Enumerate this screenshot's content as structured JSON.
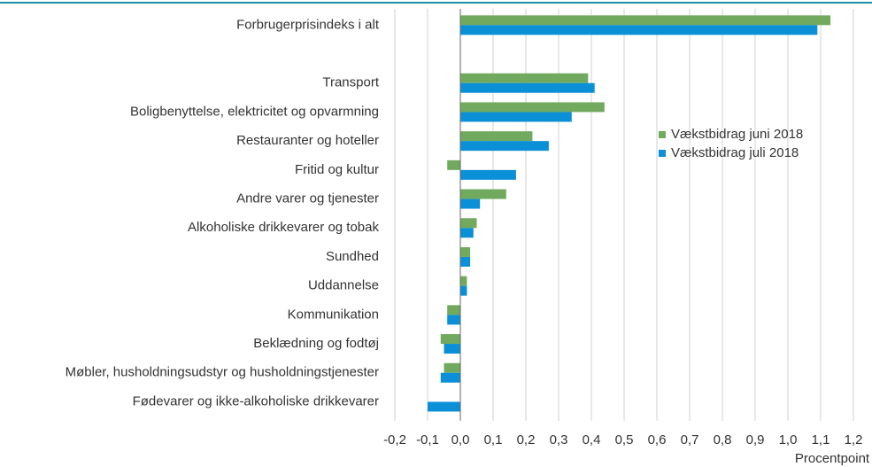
{
  "chart_data": {
    "type": "hbar",
    "xlabel": "Procentpoint",
    "categories": [
      "Forbrugerprisindeks i alt",
      null,
      "Transport",
      "Boligbenyttelse, elektricitet og opvarmning",
      "Restauranter og hoteller",
      "Fritid og kultur",
      "Andre varer og tjenester",
      "Alkoholiske drikkevarer og tobak",
      "Sundhed",
      "Uddannelse",
      "Kommunikation",
      "Beklædning og fodtøj",
      "Møbler, husholdningsudstyr og husholdningstjenester",
      "Fødevarer og ikke-alkoholiske drikkevarer"
    ],
    "series": [
      {
        "name": "Vækstbidrag juni 2018",
        "color": "#71a95e",
        "values": [
          1.13,
          null,
          0.39,
          0.44,
          0.22,
          -0.04,
          0.14,
          0.05,
          0.03,
          0.02,
          -0.04,
          -0.06,
          -0.05,
          0
        ]
      },
      {
        "name": "Vækstbidrag juli 2018",
        "color": "#0b8fd6",
        "values": [
          1.09,
          null,
          0.41,
          0.34,
          0.27,
          0.17,
          0.06,
          0.04,
          0.03,
          0.02,
          -0.04,
          -0.05,
          -0.06,
          -0.1
        ]
      }
    ],
    "xlim": [
      -0.2,
      1.2
    ],
    "xticks": [
      {
        "value": -0.2,
        "label": "-0,2"
      },
      {
        "value": -0.1,
        "label": "-0,1"
      },
      {
        "value": 0,
        "label": "0,0"
      },
      {
        "value": 0.1,
        "label": "0,1"
      },
      {
        "value": 0.2,
        "label": "0,2"
      },
      {
        "value": 0.3,
        "label": "0,3"
      },
      {
        "value": 0.4,
        "label": "0,4"
      },
      {
        "value": 0.5,
        "label": "0,5"
      },
      {
        "value": 0.6,
        "label": "0,6"
      },
      {
        "value": 0.7,
        "label": "0,7"
      },
      {
        "value": 0.8,
        "label": "0,8"
      },
      {
        "value": 0.9,
        "label": "0,9"
      },
      {
        "value": 1,
        "label": "1,0"
      },
      {
        "value": 1.1,
        "label": "1,1"
      },
      {
        "value": 1.2,
        "label": "1,2"
      }
    ],
    "grid": true,
    "legend": "right"
  }
}
